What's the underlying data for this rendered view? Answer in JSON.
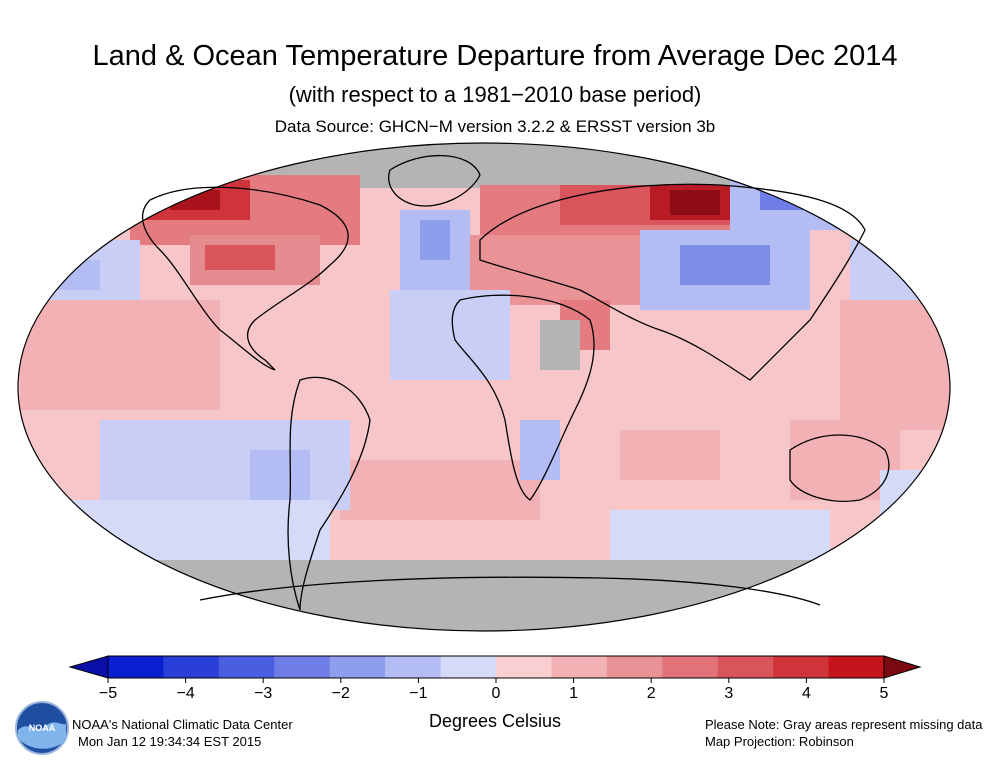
{
  "header": {
    "title": "Land & Ocean Temperature Departure from Average Dec 2014",
    "subtitle": "(with respect to a 1981−2010 base period)",
    "source": "Data Source: GHCN−M version 3.2.2 & ERSST version 3b"
  },
  "colorbar": {
    "ticks": [
      "−5",
      "−4",
      "−3",
      "−2",
      "−1",
      "0",
      "1",
      "2",
      "3",
      "4",
      "5"
    ],
    "colors": [
      "#0a1fd0",
      "#2a3fd8",
      "#4c5ee0",
      "#6e7ee6",
      "#8f9ded",
      "#b3bcf3",
      "#d6daf9",
      "#f9cfd2",
      "#f2b1b5",
      "#ea9397",
      "#e27479",
      "#d9555b",
      "#cf343b",
      "#c4141c"
    ],
    "units_label": "Degrees Celsius",
    "missing_color": "#b4b4b4"
  },
  "footer": {
    "center_name": "NOAA's National Climatic Data Center",
    "timestamp": "Mon Jan 12 19:34:34 EST 2015",
    "note": "Please Note: Gray areas represent missing data",
    "projection": "Map Projection: Robinson",
    "logo_text": "NOAA"
  }
}
